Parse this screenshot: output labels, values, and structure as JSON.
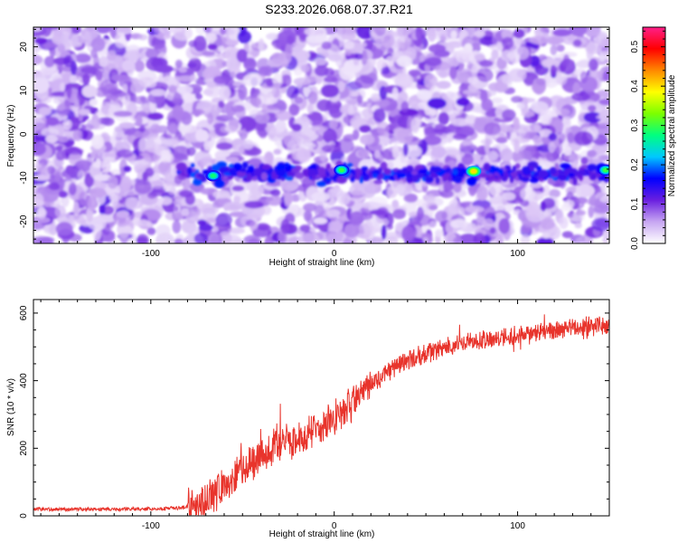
{
  "title": "S233.2026.068.07.37.R21",
  "chart_data": [
    {
      "type": "heatmap",
      "xlabel": "Height of straight line (km)",
      "ylabel": "Frequency (Hz)",
      "xlim": [
        -164,
        150
      ],
      "ylim": [
        -25,
        24.5
      ],
      "x_ticks": [
        -100,
        0,
        100
      ],
      "x_tick_labels": [
        "-100",
        "0",
        "100"
      ],
      "y_ticks": [
        -20,
        -10,
        0,
        10,
        20
      ],
      "y_tick_labels": [
        "-20",
        "-10",
        "0",
        "10",
        "20"
      ],
      "grid": false,
      "colorbar": {
        "label": "Normalized spectral amplitude",
        "range": [
          0.0,
          0.55
        ],
        "ticks": [
          0.0,
          0.1,
          0.2,
          0.3,
          0.4,
          0.5
        ],
        "tick_labels": [
          "0.0",
          "0.1",
          "0.2",
          "0.3",
          "0.4",
          "0.5"
        ],
        "colors": [
          "#ffffff",
          "#c7a6f2",
          "#6a1fe0",
          "#0000ff",
          "#00c8ff",
          "#00ff80",
          "#7cff00",
          "#ffff00",
          "#ff8800",
          "#ff0000",
          "#ff1f8a"
        ]
      },
      "signal_band": {
        "frequency_hz": -9,
        "x_start": -85,
        "x_end": 150,
        "hotspots": [
          {
            "x": -66,
            "y": -9.5,
            "v": 0.28
          },
          {
            "x": 4,
            "y": -8.2,
            "v": 0.3
          },
          {
            "x": 76,
            "y": -8.5,
            "v": 0.4
          },
          {
            "x": 148,
            "y": -8.2,
            "v": 0.3
          }
        ]
      },
      "background_level": 0.05
    },
    {
      "type": "line",
      "xlabel": "Height of straight line (km)",
      "ylabel": "SNR (10 * v/v)",
      "xlim": [
        -164,
        150
      ],
      "ylim": [
        0,
        640
      ],
      "x_ticks": [
        -100,
        0,
        100
      ],
      "x_tick_labels": [
        "-100",
        "0",
        "100"
      ],
      "y_ticks": [
        0,
        200,
        400,
        600
      ],
      "y_tick_labels": [
        "0",
        "200",
        "400",
        "600"
      ],
      "grid": false,
      "color": "#e8342c",
      "series": [
        {
          "x": [
            -164,
            -150,
            -130,
            -110,
            -95,
            -85,
            -78,
            -70,
            -60,
            -50,
            -40,
            -30,
            -20,
            -10,
            0,
            10,
            20,
            30,
            40,
            50,
            60,
            70,
            80,
            90,
            100,
            110,
            120,
            130,
            140,
            150
          ],
          "values": [
            20,
            20,
            20,
            20,
            21,
            23,
            30,
            50,
            90,
            140,
            180,
            210,
            230,
            250,
            290,
            330,
            390,
            430,
            460,
            480,
            500,
            510,
            520,
            530,
            535,
            540,
            548,
            555,
            560,
            565
          ]
        }
      ]
    }
  ]
}
